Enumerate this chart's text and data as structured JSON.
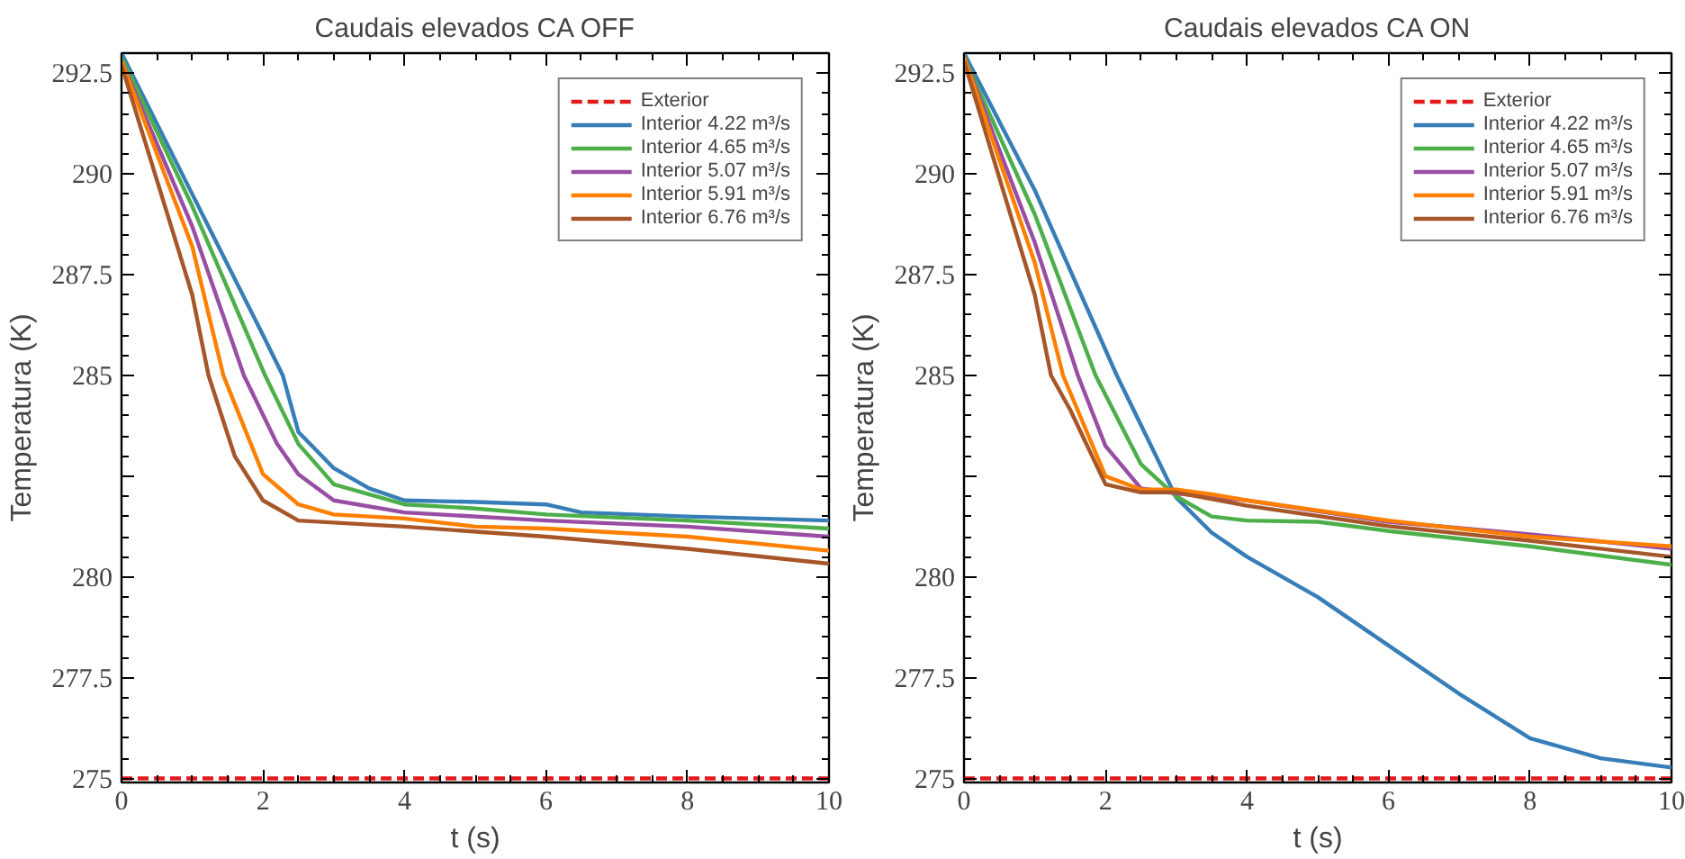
{
  "chart_data": [
    {
      "type": "line",
      "title": "Caudais elevados CA OFF",
      "xlabel": "t (s)",
      "ylabel": "Temperatura (K)",
      "xlim": [
        0,
        10
      ],
      "ylim": [
        274.9,
        293
      ],
      "xticks": [
        0,
        2,
        4,
        6,
        8,
        10
      ],
      "yticks": [
        275,
        {
          "value": 277.5,
          "label": "277.5"
        },
        280,
        {
          "value": 282.5,
          "label": null
        },
        285,
        {
          "value": 287.5,
          "label": "287.5"
        },
        290,
        {
          "value": 292.5,
          "label": "292.5"
        }
      ],
      "grid": false,
      "legend": "top right",
      "series": [
        {
          "name": "Exterior",
          "color": "#e41a1c",
          "line_style": "dashed",
          "x": [
            0,
            10
          ],
          "values": [
            275,
            275
          ]
        },
        {
          "name": "Interior 4.22 m³/s",
          "color": "#377eb8",
          "x": [
            0,
            1,
            2,
            2.28,
            2.5,
            3,
            3.5,
            4,
            5,
            6,
            6.5,
            8,
            10
          ],
          "values": [
            293,
            289.5,
            286,
            285,
            283.6,
            282.7,
            282.2,
            281.9,
            281.86,
            281.8,
            281.6,
            281.5,
            281.4
          ]
        },
        {
          "name": "Interior 4.65 m³/s",
          "color": "#4daf4a",
          "x": [
            0,
            1,
            2.03,
            2.5,
            3,
            4,
            5,
            6,
            8,
            10
          ],
          "values": [
            292.9,
            289.2,
            285,
            283.3,
            282.3,
            281.8,
            281.7,
            281.55,
            281.4,
            281.2
          ]
        },
        {
          "name": "Interior 5.07 m³/s",
          "color": "#984ea3",
          "x": [
            0,
            1,
            1.73,
            2.2,
            2.5,
            3,
            4,
            6,
            8,
            10
          ],
          "values": [
            292.8,
            288.7,
            285,
            283.3,
            282.55,
            281.9,
            281.6,
            281.4,
            281.25,
            281.0
          ]
        },
        {
          "name": "Interior 5.91 m³/s",
          "color": "#ff7f00",
          "x": [
            0,
            1,
            1.44,
            2,
            2.5,
            3,
            4,
            5,
            6,
            8,
            10
          ],
          "values": [
            292.8,
            288.2,
            285,
            282.55,
            281.8,
            281.55,
            281.45,
            281.25,
            281.2,
            281.0,
            280.65
          ]
        },
        {
          "name": "Interior 6.76 m³/s",
          "color": "#a65628",
          "x": [
            0,
            1,
            1.23,
            1.6,
            2,
            2.5,
            3,
            4,
            6,
            8,
            10
          ],
          "values": [
            292.7,
            287.0,
            285,
            283.0,
            281.9,
            281.4,
            281.35,
            281.25,
            281.0,
            280.7,
            280.33
          ]
        }
      ]
    },
    {
      "type": "line",
      "title": "Caudais elevados CA ON",
      "xlabel": "t (s)",
      "ylabel": "Temperatura (K)",
      "xlim": [
        0,
        10
      ],
      "ylim": [
        274.9,
        293
      ],
      "xticks": [
        0,
        2,
        4,
        6,
        8,
        10
      ],
      "yticks": [
        275,
        {
          "value": 277.5,
          "label": "277.5"
        },
        280,
        {
          "value": 282.5,
          "label": null
        },
        285,
        {
          "value": 287.5,
          "label": "287.5"
        },
        290,
        {
          "value": 292.5,
          "label": "292.5"
        }
      ],
      "grid": false,
      "legend": "top right",
      "series": [
        {
          "name": "Exterior",
          "color": "#e41a1c",
          "line_style": "dashed",
          "x": [
            0,
            10
          ],
          "values": [
            275,
            275
          ]
        },
        {
          "name": "Interior 4.22 m³/s",
          "color": "#377eb8",
          "x": [
            0,
            1,
            2.16,
            3,
            3.5,
            4,
            5,
            6,
            7,
            8,
            9,
            10
          ],
          "values": [
            293,
            289.6,
            285,
            281.97,
            281.1,
            280.5,
            279.5,
            278.3,
            277.1,
            276.0,
            275.5,
            275.27
          ]
        },
        {
          "name": "Interior 4.65 m³/s",
          "color": "#4daf4a",
          "x": [
            0,
            1,
            1.86,
            2.5,
            3,
            3.5,
            4,
            5,
            6,
            8,
            10
          ],
          "values": [
            292.9,
            289.0,
            285,
            282.8,
            282.0,
            281.5,
            281.4,
            281.37,
            281.14,
            280.76,
            280.3
          ]
        },
        {
          "name": "Interior 5.07 m³/s",
          "color": "#984ea3",
          "x": [
            0,
            1,
            1.61,
            2,
            2.5,
            3,
            4,
            6,
            8,
            10
          ],
          "values": [
            292.9,
            288.3,
            285,
            283.25,
            282.2,
            282.07,
            281.9,
            281.37,
            281.06,
            280.7
          ]
        },
        {
          "name": "Interior 5.91 m³/s",
          "color": "#ff7f00",
          "x": [
            0,
            1,
            1.4,
            2,
            2.5,
            3,
            3.5,
            4,
            6,
            8,
            10
          ],
          "values": [
            292.9,
            287.8,
            285,
            282.5,
            282.17,
            282.17,
            282.05,
            281.9,
            281.4,
            281.0,
            280.76
          ]
        },
        {
          "name": "Interior 6.76 m³/s",
          "color": "#a65628",
          "x": [
            0,
            1,
            1.23,
            1.5,
            2,
            2.5,
            3,
            4,
            6,
            8,
            10
          ],
          "values": [
            292.8,
            287.0,
            285,
            284.15,
            282.3,
            282.1,
            282.1,
            281.77,
            281.26,
            280.9,
            280.5
          ]
        }
      ]
    }
  ]
}
